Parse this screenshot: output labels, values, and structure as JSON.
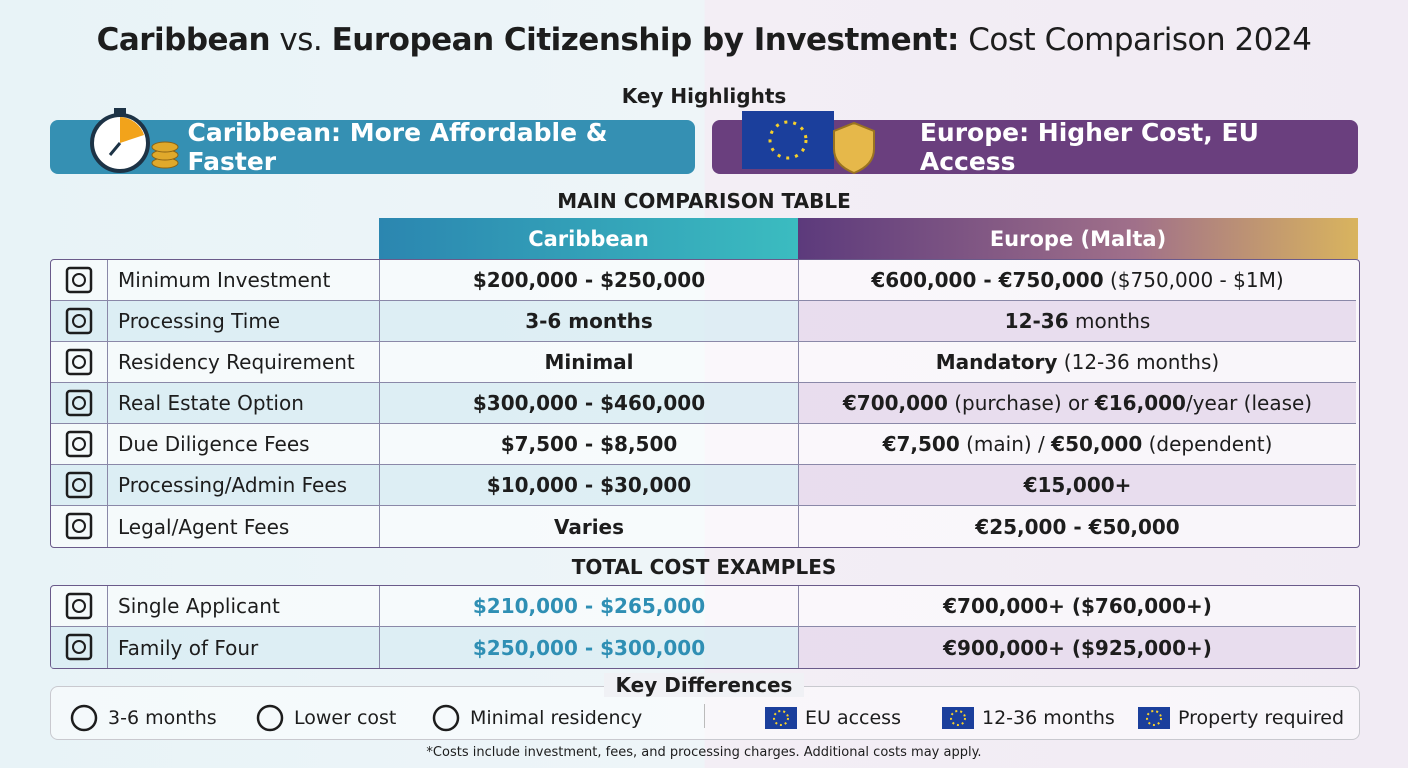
{
  "title": [
    {
      "text": "Caribbean",
      "bold": true
    },
    {
      "text": " vs. "
    },
    {
      "text": "European Citizenship by Investment:",
      "bold": true
    },
    {
      "text": " Cost Comparison 2024"
    }
  ],
  "highlights": {
    "title": "Key Highlights",
    "caribbean": "Caribbean: More Affordable & Faster",
    "europe": "Europe: Higher Cost, EU Access"
  },
  "main_table": {
    "title": "MAIN COMPARISON TABLE",
    "columns": [
      "Caribbean",
      "Europe (Malta)"
    ],
    "rows": [
      {
        "label": "Minimum Investment",
        "caribbean": [
          {
            "text": "$200,000 - $250,000",
            "bold": true
          }
        ],
        "europe": [
          {
            "text": "€600,000 - €750,000",
            "bold": true
          },
          {
            "text": " ($750,000 - $1M)"
          }
        ]
      },
      {
        "label": "Processing Time",
        "caribbean": [
          {
            "text": "3-6 months",
            "bold": true
          }
        ],
        "europe": [
          {
            "text": "12-36",
            "bold": true
          },
          {
            "text": " months"
          }
        ]
      },
      {
        "label": "Residency Requirement",
        "caribbean": [
          {
            "text": "Minimal",
            "bold": true
          }
        ],
        "europe": [
          {
            "text": "Mandatory",
            "bold": true
          },
          {
            "text": " (12-36 months)"
          }
        ]
      },
      {
        "label": "Real Estate Option",
        "caribbean": [
          {
            "text": "$300,000 - $460,000",
            "bold": true
          }
        ],
        "europe": [
          {
            "text": "€700,000",
            "bold": true
          },
          {
            "text": " (purchase) or "
          },
          {
            "text": "€16,000",
            "bold": true
          },
          {
            "text": "/year (lease)"
          }
        ]
      },
      {
        "label": "Due Diligence Fees",
        "caribbean": [
          {
            "text": "$7,500 - $8,500",
            "bold": true
          }
        ],
        "europe": [
          {
            "text": "€7,500",
            "bold": true
          },
          {
            "text": " (main) / "
          },
          {
            "text": "€50,000",
            "bold": true
          },
          {
            "text": " (dependent)"
          }
        ]
      },
      {
        "label": "Processing/Admin Fees",
        "caribbean": [
          {
            "text": "$10,000 - $30,000",
            "bold": true
          }
        ],
        "europe": [
          {
            "text": "€15,000+",
            "bold": true
          }
        ]
      },
      {
        "label": "Legal/Agent Fees",
        "caribbean": [
          {
            "text": "Varies",
            "bold": true
          }
        ],
        "europe": [
          {
            "text": "€25,000 - €50,000",
            "bold": true
          }
        ]
      }
    ]
  },
  "totals": {
    "title": "TOTAL COST EXAMPLES",
    "rows": [
      {
        "label": "Single Applicant",
        "caribbean": [
          {
            "text": "$210,000 - $265,000",
            "bold": true
          }
        ],
        "europe": [
          {
            "text": "€700,000+ ($760,000+)",
            "bold": true
          }
        ]
      },
      {
        "label": "Family of Four",
        "caribbean": [
          {
            "text": "$250,000 - $300,000",
            "bold": true
          }
        ],
        "europe": [
          {
            "text": "€900,000+ ($925,000+)",
            "bold": true
          }
        ]
      }
    ]
  },
  "key_differences": {
    "title": "Key Differences",
    "caribbean": [
      "3-6 months",
      "Lower cost",
      "Minimal residency"
    ],
    "europe": [
      "EU access",
      "12-36 months",
      "Property required"
    ]
  },
  "footnote": "*Costs include investment, fees, and processing charges. Additional costs may apply."
}
